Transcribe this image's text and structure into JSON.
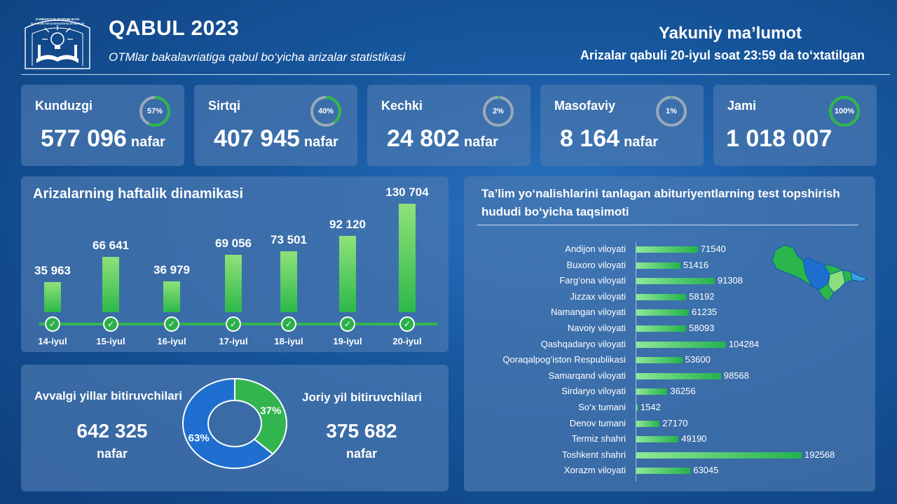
{
  "header": {
    "title": "QABUL 2023",
    "subtitle": "OTMlar bakalavriatiga qabul bo‘yicha arizalar statistikasi",
    "final_title": "Yakuniy ma’lumot",
    "final_subtitle": "Arizalar qabuli 20-iyul soat 23:59 da to‘xtatilgan",
    "logo_text": [
      "O‘ZBEKISTON RESPUBLIKASI",
      "OLIY TA’LIM, FAN VA INNOVATSIYALAR VAZIRLIGI"
    ]
  },
  "stats": [
    {
      "label": "Kunduzgi",
      "value": "577 096",
      "unit": "nafar",
      "percent_label": "57%",
      "percent": 57
    },
    {
      "label": "Sirtqi",
      "value": "407 945",
      "unit": "nafar",
      "percent_label": "40%",
      "percent": 40
    },
    {
      "label": "Kechki",
      "value": "24 802",
      "unit": "nafar",
      "percent_label": "2%",
      "percent": 2
    },
    {
      "label": "Masofaviy",
      "value": "8 164",
      "unit": "nafar",
      "percent_label": "1%",
      "percent": 1
    },
    {
      "label": "Jami",
      "value": "1 018 007",
      "unit": "",
      "percent_label": "100%",
      "percent": 100
    }
  ],
  "colors": {
    "accent_green": "#2db84a",
    "donut_blue": "#1f6fd0",
    "ring_track": "#9aa9b8"
  },
  "chart_data": [
    {
      "type": "bar",
      "title": "Arizalarning haftalik dinamikasi",
      "categories": [
        "14-iyul",
        "15-iyul",
        "16-iyul",
        "17-iyul",
        "18-iyul",
        "19-iyul",
        "20-iyul"
      ],
      "values": [
        35963,
        66641,
        36979,
        69056,
        73501,
        92120,
        130704
      ],
      "value_labels": [
        "35 963",
        "66 641",
        "36 979",
        "69 056",
        "73 501",
        "92 120",
        "130 704"
      ],
      "ylim": [
        0,
        140000
      ]
    },
    {
      "type": "pie",
      "slices": [
        {
          "name": "Avvalgi yillar bitiruvchilari",
          "value": 642325,
          "value_label": "642 325",
          "unit": "nafar",
          "percent_label": "63%",
          "color": "#1f6fd0"
        },
        {
          "name": "Joriy yil bitiruvchilari",
          "value": 375682,
          "value_label": "375 682",
          "unit": "nafar",
          "percent_label": "37%",
          "color": "#32b54f"
        }
      ]
    },
    {
      "type": "bar",
      "orientation": "horizontal",
      "title": "Ta’lim yo‘nalishlarini tanlagan abituriyentlarning test topshirish hududi bo‘yicha taqsimoti",
      "categories": [
        "Andijon viloyati",
        "Buxoro viloyati",
        "Farg‘ona viloyati",
        "Jizzax viloyati",
        "Namangan viloyati",
        "Navoiy viloyati",
        "Qashqadaryo viloyati",
        "Qoraqalpog‘iston Respublikasi",
        "Samarqand viloyati",
        "Sirdaryo viloyati",
        "So‘x tumani",
        "Denov tumani",
        "Termiz shahri",
        "Toshkent shahri",
        "Xorazm viloyati"
      ],
      "values": [
        71540,
        51416,
        91308,
        58192,
        61235,
        58093,
        104284,
        53600,
        98568,
        36256,
        1542,
        27170,
        49190,
        192568,
        63045
      ],
      "xlim": [
        0,
        200000
      ]
    }
  ]
}
